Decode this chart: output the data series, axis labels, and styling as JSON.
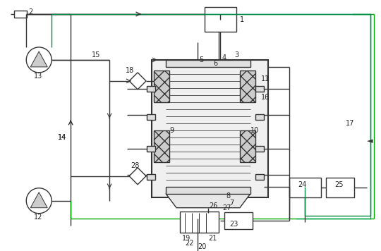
{
  "bg_color": "#f5f5f5",
  "line_color": "#333333",
  "box_color": "#ffffff",
  "hatch_color": "#aaaaaa",
  "label_color": "#222222",
  "fig_width": 5.4,
  "fig_height": 3.56,
  "dpi": 100
}
